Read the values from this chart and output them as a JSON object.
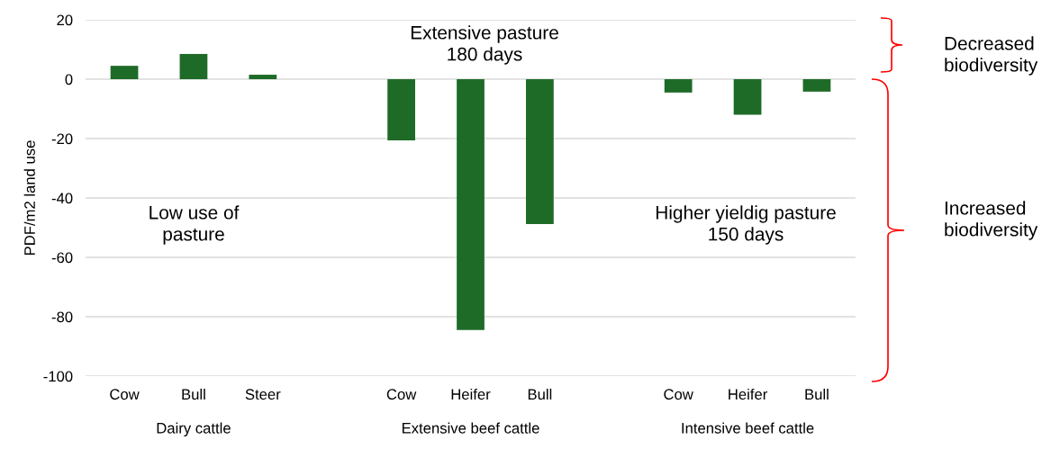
{
  "chart_data": {
    "type": "bar",
    "ylabel": "PDF/m2 land use",
    "categories": [
      "Cow",
      "Bull",
      "Steer",
      null,
      "Cow",
      "Heifer",
      "Bull",
      null,
      "Cow",
      "Heifer",
      "Bull"
    ],
    "values": [
      4.5,
      8.5,
      1.5,
      null,
      -20.6,
      -84.5,
      -48.8,
      null,
      -4.5,
      -12,
      -4.2
    ],
    "color": "#1e6b28",
    "ylim": [
      -100,
      20
    ],
    "yticks": [
      -100,
      -80,
      -60,
      -40,
      -20,
      0,
      20
    ],
    "grid": "y",
    "annotations": [
      "Dairy cattle",
      "Extensive beef cattle",
      "Intensive beef cattle",
      "Low use of\npasture",
      "Extensive pasture\n180 days",
      "Higher yieldig pasture\n150 days",
      "Decreased\nbiodiversity",
      "Increased\nbiodiversity"
    ]
  }
}
